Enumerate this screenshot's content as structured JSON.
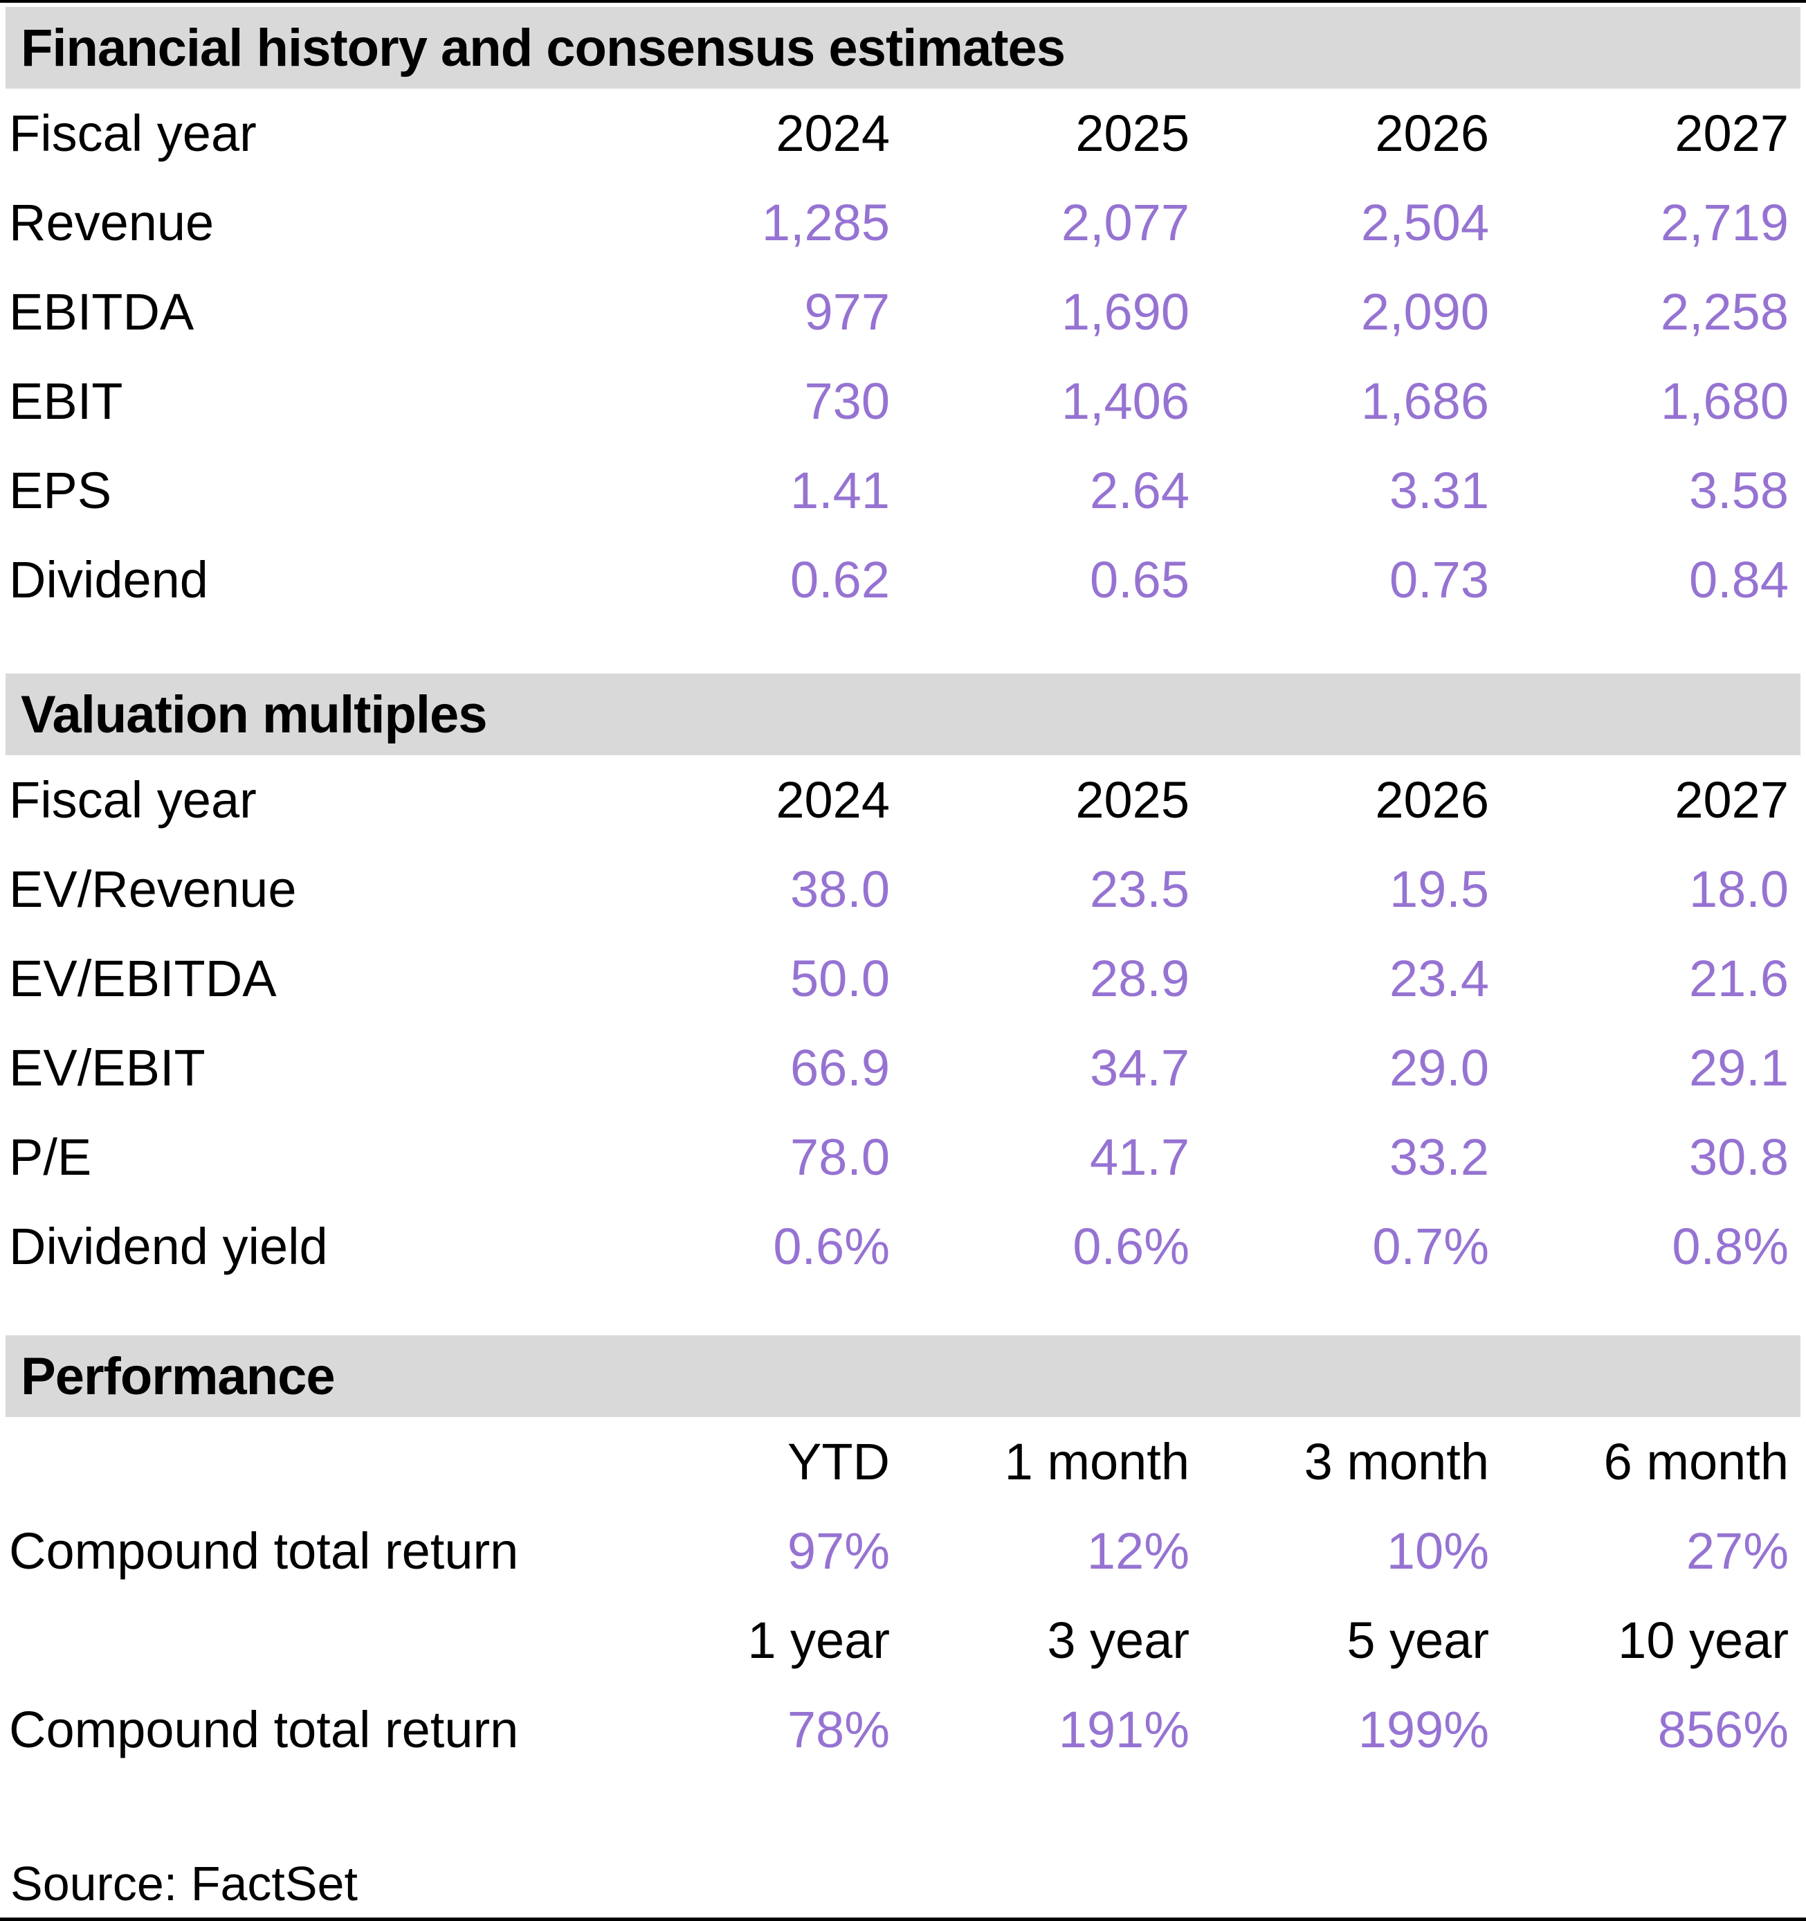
{
  "colors": {
    "accent_purple": "#9673D2",
    "section_header_bg": "#D9D9D9",
    "text": "#000000"
  },
  "sections": [
    {
      "title": "Financial history and consensus estimates",
      "header_row": {
        "label": "Fiscal year",
        "cols": [
          "2024",
          "2025",
          "2026",
          "2027"
        ]
      },
      "rows": [
        {
          "label": "Revenue",
          "values": [
            "1,285",
            "2,077",
            "2,504",
            "2,719"
          ]
        },
        {
          "label": "EBITDA",
          "values": [
            "977",
            "1,690",
            "2,090",
            "2,258"
          ]
        },
        {
          "label": "EBIT",
          "values": [
            "730",
            "1,406",
            "1,686",
            "1,680"
          ]
        },
        {
          "label": "EPS",
          "values": [
            "1.41",
            "2.64",
            "3.31",
            "3.58"
          ]
        },
        {
          "label": "Dividend",
          "values": [
            "0.62",
            "0.65",
            "0.73",
            "0.84"
          ]
        }
      ]
    },
    {
      "title": "Valuation multiples",
      "header_row": {
        "label": "Fiscal year",
        "cols": [
          "2024",
          "2025",
          "2026",
          "2027"
        ]
      },
      "rows": [
        {
          "label": "EV/Revenue",
          "values": [
            "38.0",
            "23.5",
            "19.5",
            "18.0"
          ]
        },
        {
          "label": "EV/EBITDA",
          "values": [
            "50.0",
            "28.9",
            "23.4",
            "21.6"
          ]
        },
        {
          "label": "EV/EBIT",
          "values": [
            "66.9",
            "34.7",
            "29.0",
            "29.1"
          ]
        },
        {
          "label": "P/E",
          "values": [
            "78.0",
            "41.7",
            "33.2",
            "30.8"
          ]
        },
        {
          "label": "Dividend yield",
          "values": [
            "0.6%",
            "0.6%",
            "0.7%",
            "0.8%"
          ]
        }
      ]
    },
    {
      "title": "Performance",
      "groups": [
        {
          "cols": [
            "YTD",
            "1 month",
            "3 month",
            "6 month"
          ],
          "row": {
            "label": "Compound total return",
            "values": [
              "97%",
              "12%",
              "10%",
              "27%"
            ]
          }
        },
        {
          "cols": [
            "1 year",
            "3 year",
            "5 year",
            "10 year"
          ],
          "row": {
            "label": "Compound total return",
            "values": [
              "78%",
              "191%",
              "199%",
              "856%"
            ]
          }
        }
      ]
    }
  ],
  "source_note": "Source: FactSet"
}
